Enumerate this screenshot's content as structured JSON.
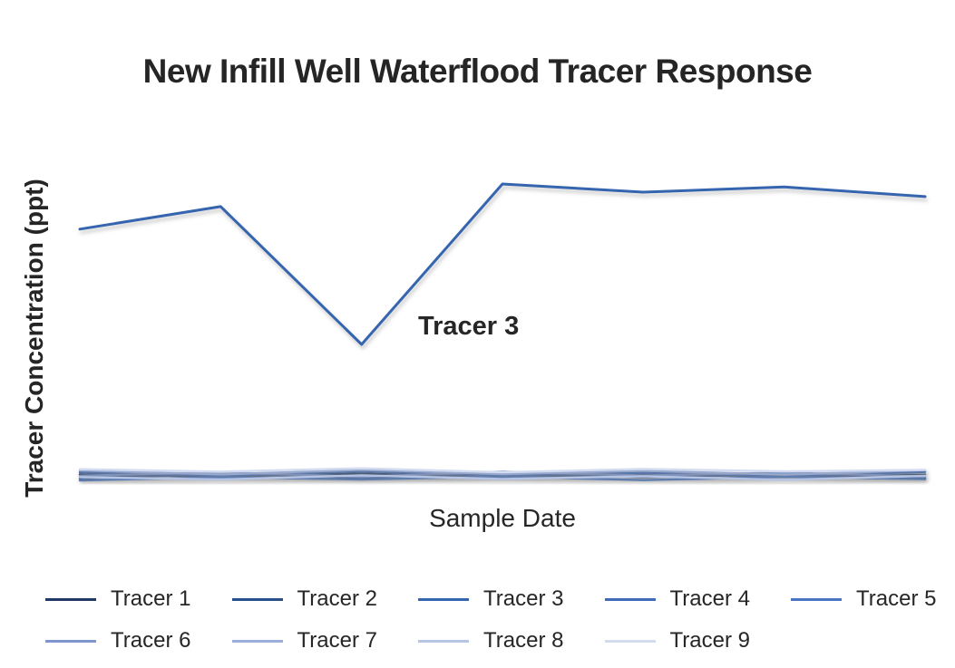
{
  "title": "New Infill Well Waterflood Tracer Response",
  "chart_data": {
    "type": "line",
    "title": "New Infill Well Waterflood Tracer Response",
    "xlabel": "Sample Date",
    "ylabel": "Tracer Concentration (ppt)",
    "x": [
      1,
      2,
      3,
      4,
      5,
      6,
      7
    ],
    "x_tick_labels_visible": false,
    "y_tick_labels_visible": false,
    "gridlines": false,
    "axis_lines_visible": false,
    "legend_position": "bottom",
    "legend_rows": [
      [
        "Tracer 1",
        "Tracer 2",
        "Tracer 3",
        "Tracer 4",
        "Tracer 5"
      ],
      [
        "Tracer 6",
        "Tracer 7",
        "Tracer 8",
        "Tracer 9"
      ]
    ],
    "units": "ppt",
    "ylim": [
      0,
      110
    ],
    "series": [
      {
        "name": "Tracer 1",
        "color": "#1F3864",
        "values": [
          3.5,
          2.8,
          3.8,
          2.5,
          3.6,
          2.9,
          3.4
        ]
      },
      {
        "name": "Tracer 2",
        "color": "#2A4F8F",
        "values": [
          2.2,
          3.6,
          2.4,
          3.8,
          2.6,
          3.5,
          2.3
        ]
      },
      {
        "name": "Tracer 3",
        "color": "#3565AF",
        "values": [
          85,
          92.5,
          46.7,
          100,
          97.3,
          99,
          95.8
        ]
      },
      {
        "name": "Tracer 4",
        "color": "#3E6BB7",
        "values": [
          4.2,
          3.0,
          4.5,
          3.2,
          4.0,
          3.0,
          4.3
        ]
      },
      {
        "name": "Tracer 5",
        "color": "#4775C1",
        "values": [
          1.5,
          2.6,
          1.8,
          2.8,
          1.6,
          2.7,
          1.9
        ]
      },
      {
        "name": "Tracer 6",
        "color": "#7E96CC",
        "values": [
          3.0,
          4.2,
          2.7,
          4.4,
          3.1,
          4.1,
          2.8
        ]
      },
      {
        "name": "Tracer 7",
        "color": "#9AAFDB",
        "values": [
          4.8,
          3.5,
          5.0,
          3.6,
          4.7,
          3.4,
          4.9
        ]
      },
      {
        "name": "Tracer 8",
        "color": "#B6C5E6",
        "values": [
          2.6,
          1.8,
          3.2,
          2.0,
          2.9,
          1.7,
          3.0
        ]
      },
      {
        "name": "Tracer 9",
        "color": "#D2DBF0",
        "values": [
          5.2,
          4.4,
          5.5,
          4.2,
          5.3,
          4.5,
          5.0
        ]
      }
    ],
    "annotations": [
      {
        "text": "Tracer 3",
        "series": "Tracer 3"
      }
    ]
  }
}
